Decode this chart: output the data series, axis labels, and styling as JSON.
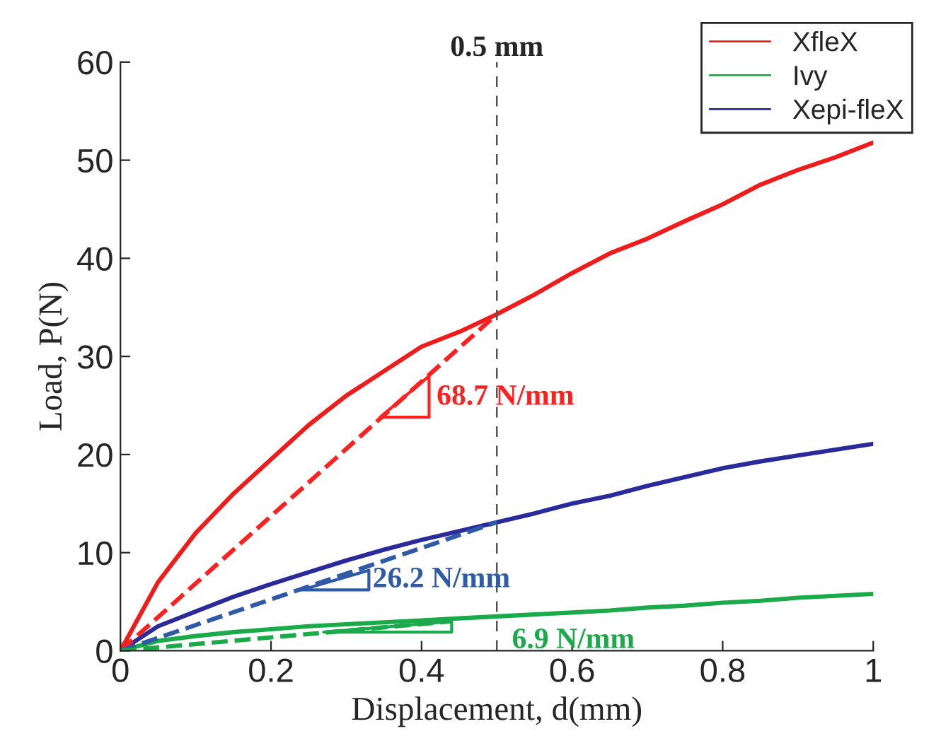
{
  "chart_data": {
    "type": "line",
    "xlabel": "Displacement, d(mm)",
    "ylabel": "Load, P(N)",
    "x": [
      0,
      0.05,
      0.1,
      0.15,
      0.2,
      0.25,
      0.3,
      0.35,
      0.4,
      0.45,
      0.5,
      0.55,
      0.6,
      0.65,
      0.7,
      0.75,
      0.8,
      0.85,
      0.9,
      0.95,
      1.0
    ],
    "series": [
      {
        "name": "XfleX",
        "color": "#f01c1c",
        "values": [
          0,
          7,
          12,
          16,
          19.5,
          23,
          26,
          28.5,
          31,
          32.5,
          34.3,
          36.3,
          38.5,
          40.5,
          42,
          43.8,
          45.5,
          47.5,
          49,
          50.3,
          51.8
        ]
      },
      {
        "name": "Ivy",
        "color": "#1aaa4a",
        "values": [
          0,
          1,
          1.5,
          1.9,
          2.2,
          2.5,
          2.7,
          2.9,
          3.1,
          3.3,
          3.5,
          3.7,
          3.9,
          4.1,
          4.4,
          4.6,
          4.9,
          5.1,
          5.4,
          5.6,
          5.8
        ]
      },
      {
        "name": "Xepi-fleX",
        "color": "#2a2a9a",
        "values": [
          0,
          2.5,
          4,
          5.5,
          6.8,
          8,
          9.2,
          10.3,
          11.3,
          12.2,
          13.1,
          14,
          15,
          15.8,
          16.8,
          17.7,
          18.6,
          19.3,
          19.9,
          20.5,
          21.1
        ]
      },
      {
        "color": "#ff2020",
        "line_style": "dashed",
        "x": [
          0,
          0.5
        ],
        "values": [
          0,
          34.3
        ]
      },
      {
        "color": "#2f5aa8",
        "line_style": "dashed",
        "x": [
          0,
          0.5
        ],
        "values": [
          0,
          13.1
        ]
      },
      {
        "color": "#1aaa4a",
        "line_style": "dashed",
        "x": [
          0,
          0.44
        ],
        "values": [
          0,
          3.0
        ]
      }
    ],
    "xlim": [
      0,
      1
    ],
    "xticks": [
      0,
      0.2,
      0.4,
      0.6,
      0.8,
      1
    ],
    "ylim": [
      0,
      60
    ],
    "yticks": [
      0,
      10,
      20,
      30,
      40,
      50,
      60
    ],
    "ref_lines": [
      {
        "axis": "x",
        "value": 0.5,
        "label": "0.5 mm",
        "color": "#555555",
        "line_style": "dashed"
      }
    ],
    "annotations": [
      "68.7 N/mm",
      "26.2 N/mm",
      "6.9 N/mm"
    ],
    "legend": "top right",
    "grid": false
  }
}
